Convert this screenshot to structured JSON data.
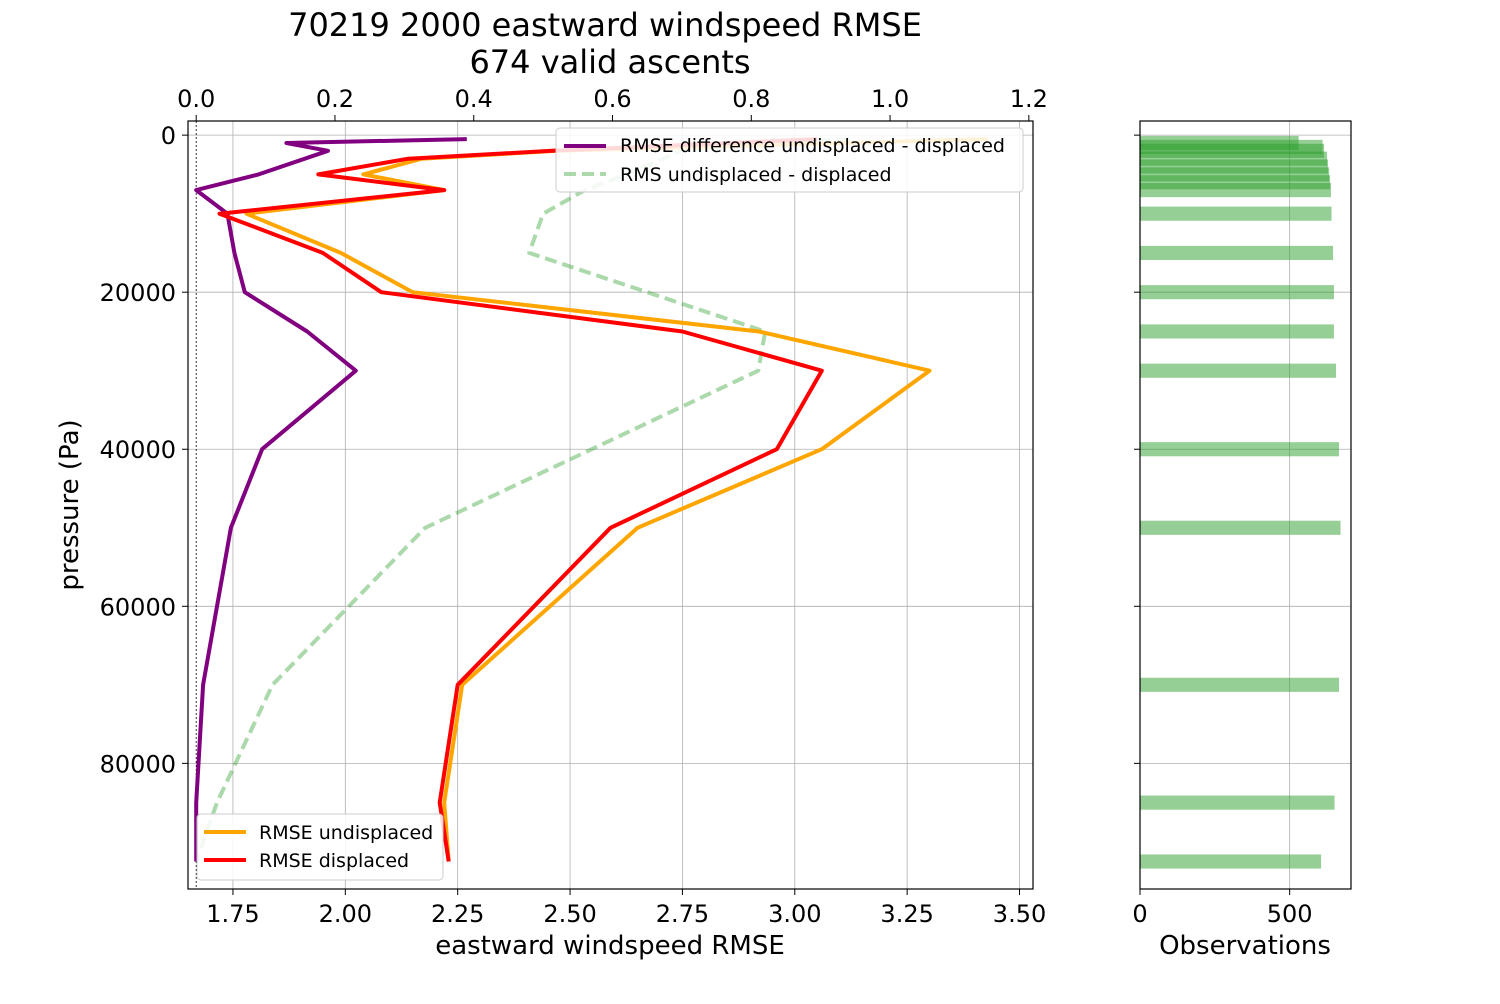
{
  "figure": {
    "title_line1": "70219 2000 eastward windspeed RMSE",
    "title_line2": "674 valid ascents"
  },
  "chart_data": [
    {
      "type": "line",
      "title": "70219 2000 eastward windspeed RMSE",
      "subtitle": "674 valid ascents",
      "xlabel": "eastward windspeed RMSE",
      "ylabel": "pressure (Pa)",
      "xlim": [
        1.65,
        3.53
      ],
      "ylim": [
        96000,
        -1800
      ],
      "y_inverted": true,
      "grid": true,
      "x_ticks": [
        "1.75",
        "2.00",
        "2.25",
        "2.50",
        "2.75",
        "3.00",
        "3.25",
        "3.50"
      ],
      "y_ticks": [
        "0",
        "20000",
        "40000",
        "60000",
        "80000"
      ],
      "top_axis": {
        "xlim": [
          -0.0118,
          1.206
        ],
        "ticks": [
          "0.0",
          "0.2",
          "0.4",
          "0.6",
          "0.8",
          "1.0",
          "1.2"
        ],
        "reference_line_at": 0
      },
      "legend_bottom_left": [
        "RMSE undisplaced",
        "RMSE displaced"
      ],
      "legend_top_right": [
        "RMSE difference undisplaced - displaced",
        "RMS undisplaced - displaced"
      ],
      "series": [
        {
          "name": "RMSE undisplaced",
          "axis": "bottom",
          "color": "#ffa500",
          "dash": "solid",
          "points": [
            [
              3.43,
              500
            ],
            [
              2.47,
              2000
            ],
            [
              2.17,
              3000
            ],
            [
              2.04,
              5000
            ],
            [
              2.22,
              7000
            ],
            [
              1.78,
              10000
            ],
            [
              1.99,
              15000
            ],
            [
              2.15,
              20000
            ],
            [
              2.92,
              25000
            ],
            [
              3.3,
              30000
            ],
            [
              3.06,
              40000
            ],
            [
              2.65,
              50000
            ],
            [
              2.26,
              70000
            ],
            [
              2.22,
              85000
            ],
            [
              2.23,
              92500
            ]
          ]
        },
        {
          "name": "RMSE displaced",
          "axis": "bottom",
          "color": "#ff0000",
          "dash": "solid",
          "points": [
            [
              3.05,
              500
            ],
            [
              2.46,
              2000
            ],
            [
              2.14,
              3000
            ],
            [
              1.94,
              5000
            ],
            [
              2.22,
              7000
            ],
            [
              1.72,
              10000
            ],
            [
              1.95,
              15000
            ],
            [
              2.08,
              20000
            ],
            [
              2.75,
              25000
            ],
            [
              3.06,
              30000
            ],
            [
              2.96,
              40000
            ],
            [
              2.59,
              50000
            ],
            [
              2.25,
              70000
            ],
            [
              2.21,
              85000
            ],
            [
              2.23,
              92500
            ]
          ]
        },
        {
          "name": "RMSE difference undisplaced - displaced",
          "axis": "top",
          "color": "#800080",
          "dash": "solid",
          "points": [
            [
              0.39,
              500
            ],
            [
              0.13,
              1000
            ],
            [
              0.19,
              2000
            ],
            [
              0.09,
              5000
            ],
            [
              0.0,
              7000
            ],
            [
              0.045,
              10000
            ],
            [
              0.055,
              15000
            ],
            [
              0.07,
              20000
            ],
            [
              0.16,
              25000
            ],
            [
              0.23,
              30000
            ],
            [
              0.095,
              40000
            ],
            [
              0.05,
              50000
            ],
            [
              0.01,
              70000
            ],
            [
              0.0,
              85000
            ],
            [
              0.0,
              92500
            ]
          ]
        },
        {
          "name": "RMS undisplaced - displaced",
          "axis": "top",
          "color": "#2ca02c",
          "dash": "dashed",
          "points": [
            [
              0.94,
              500
            ],
            [
              0.82,
              1000
            ],
            [
              0.7,
              2000
            ],
            [
              0.62,
              5000
            ],
            [
              0.56,
              7000
            ],
            [
              0.5,
              10000
            ],
            [
              0.48,
              15000
            ],
            [
              0.65,
              20000
            ],
            [
              0.82,
              25000
            ],
            [
              0.81,
              30000
            ],
            [
              0.57,
              40000
            ],
            [
              0.33,
              50000
            ],
            [
              0.11,
              70000
            ],
            [
              0.03,
              85000
            ],
            [
              0.0,
              92500
            ]
          ]
        }
      ]
    },
    {
      "type": "bar",
      "orientation": "horizontal",
      "xlabel": "Observations",
      "xlim": [
        0,
        705
      ],
      "ylim": [
        96000,
        -1800
      ],
      "y_inverted": true,
      "grid": true,
      "x_ticks": [
        "0",
        "500"
      ],
      "bar_color": "#2ca02c",
      "bar_height_pa": 1800,
      "series": [
        {
          "pressure": [
            1000,
            1500,
            2000,
            3000,
            4000,
            5000,
            6000,
            7000,
            10000,
            15000,
            20000,
            25000,
            30000,
            40000,
            50000,
            70000,
            85000,
            92500
          ],
          "values": [
            530,
            610,
            615,
            625,
            628,
            632,
            635,
            638,
            640,
            645,
            648,
            648,
            655,
            665,
            670,
            665,
            650,
            605
          ]
        }
      ]
    }
  ]
}
